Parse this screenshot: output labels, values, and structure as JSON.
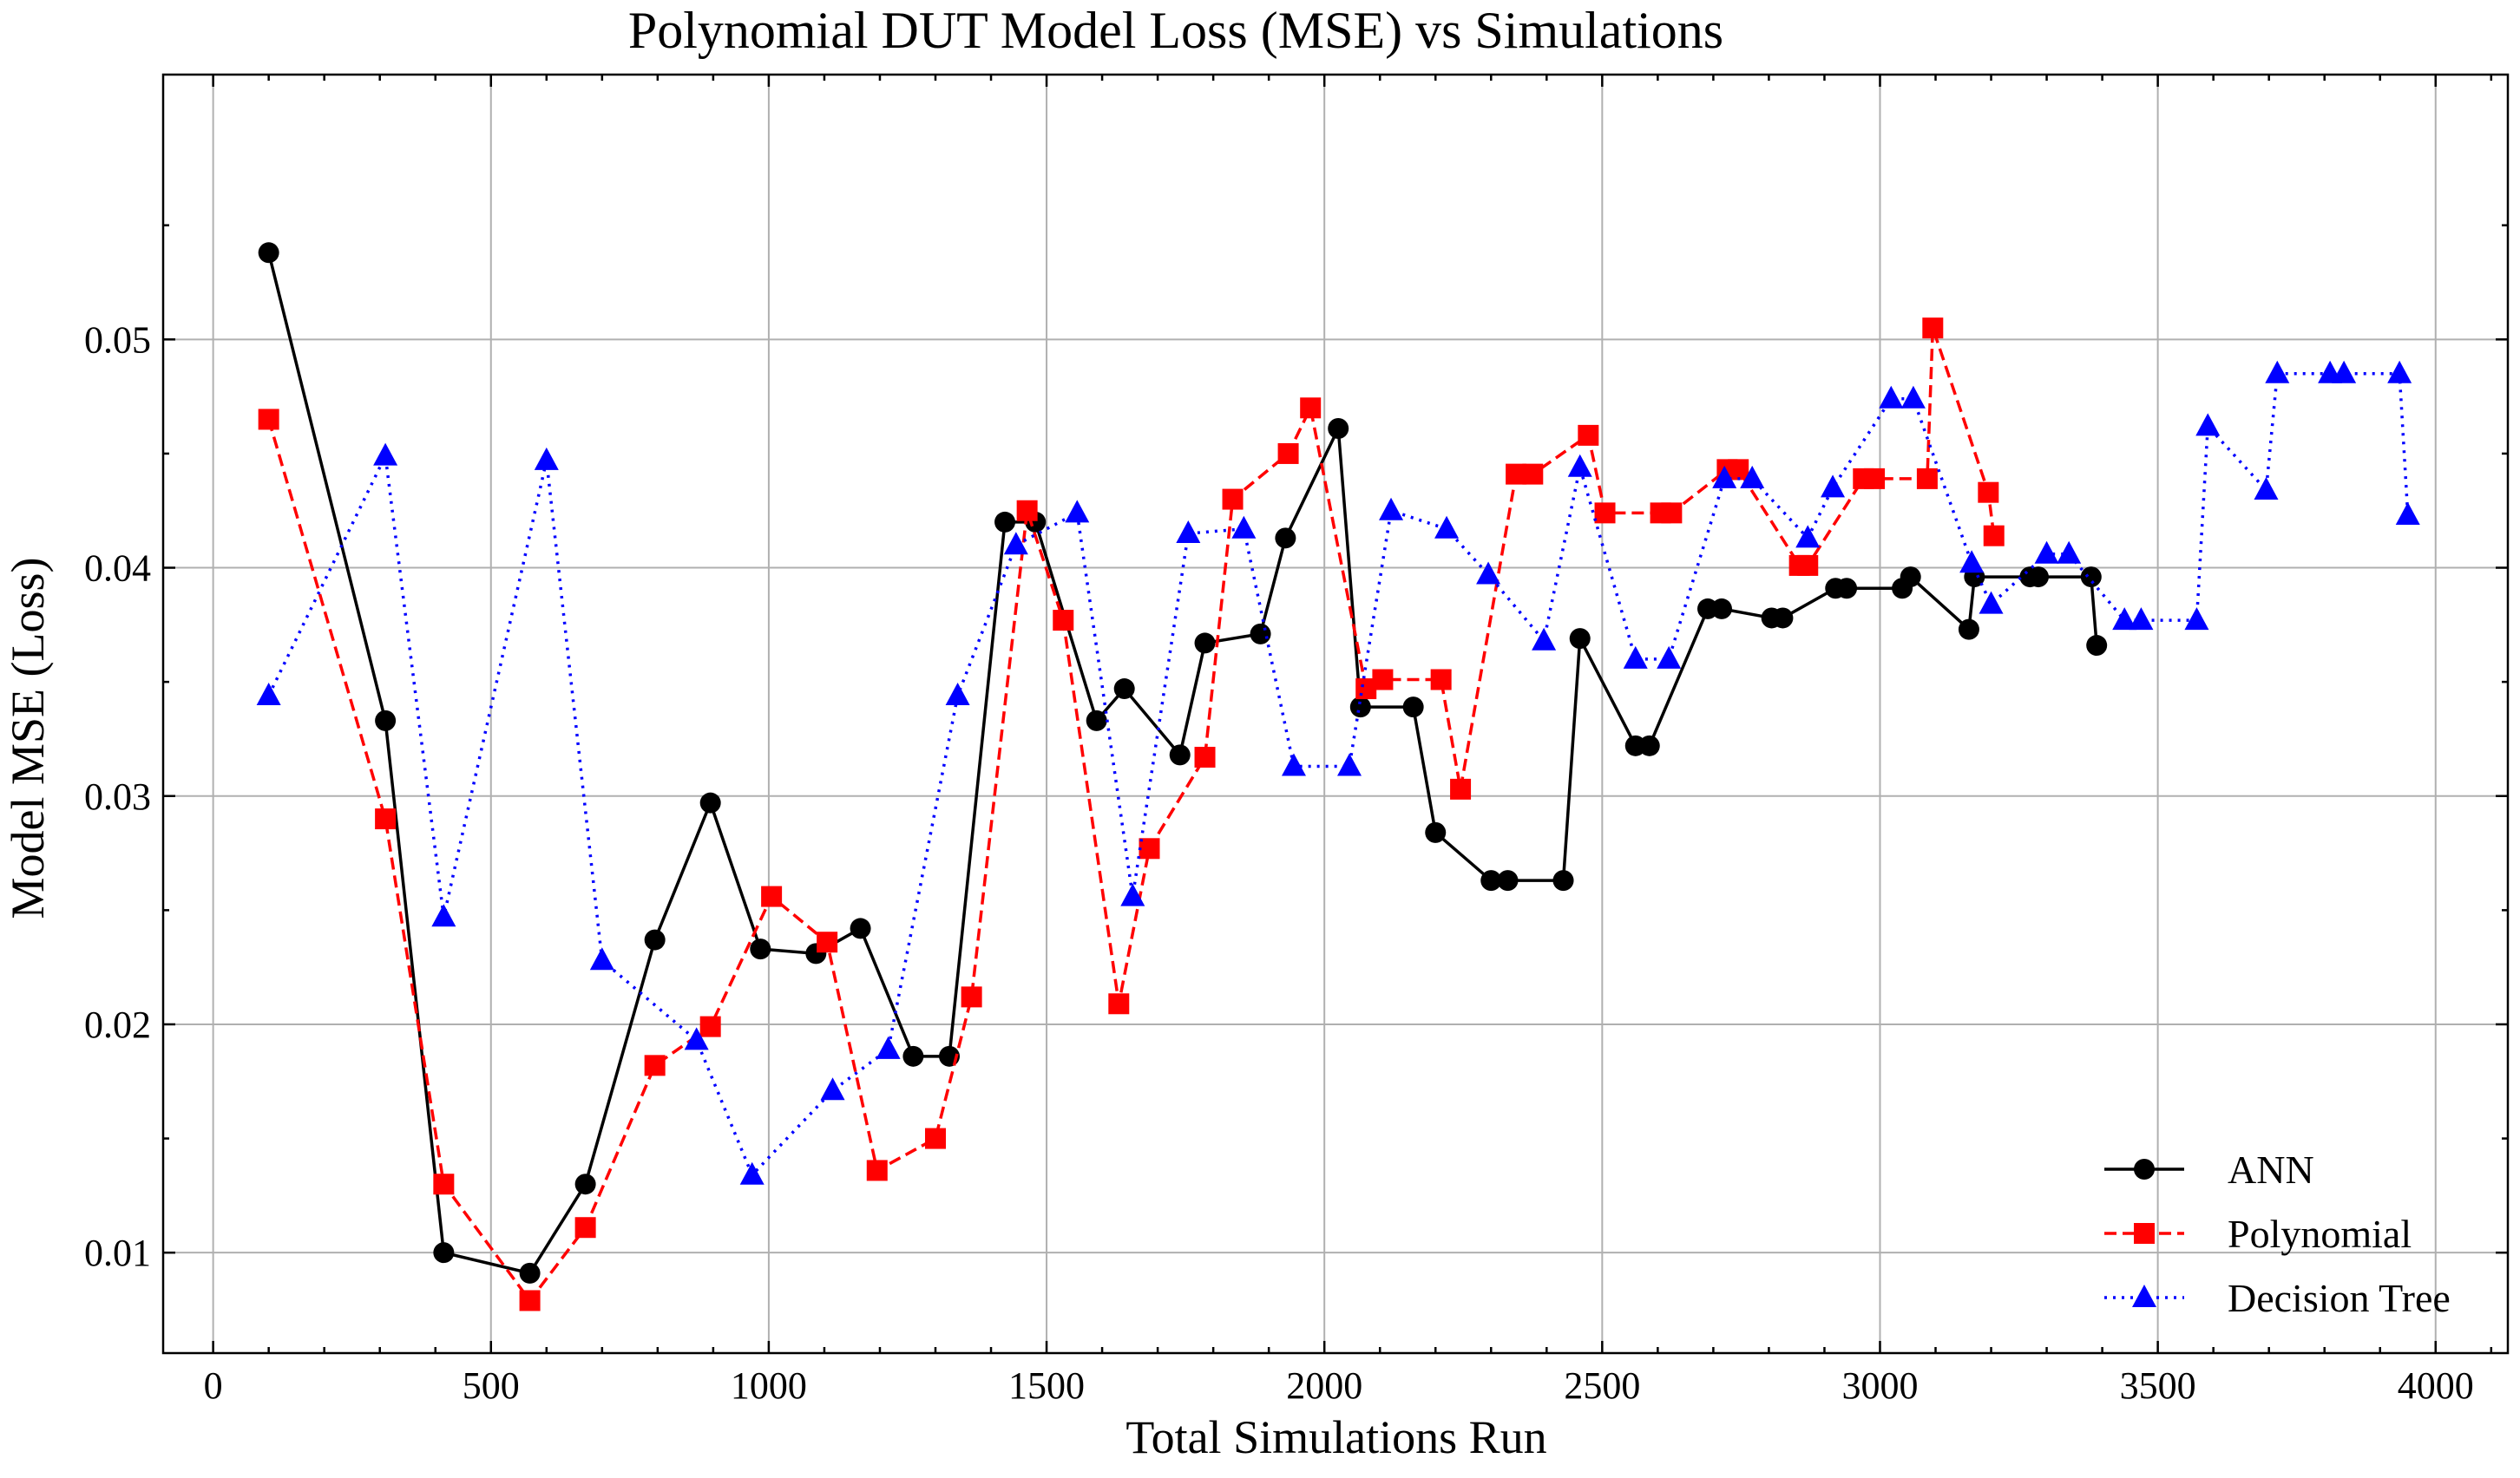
{
  "chart_data": {
    "type": "line",
    "title": "Polynomial DUT Model Loss (MSE) vs Simulations",
    "xlabel": "Total Simulations Run",
    "ylabel": "Model MSE (Loss)",
    "xlim": [
      -90,
      4130
    ],
    "ylim": [
      0.0056,
      0.0616
    ],
    "xticks": [
      0,
      500,
      1000,
      1500,
      2000,
      2500,
      3000,
      3500,
      4000
    ],
    "xtick_labels": [
      "0",
      "500",
      "1000",
      "1500",
      "2000",
      "2500",
      "3000",
      "3500",
      "4000"
    ],
    "yticks": [
      0.01,
      0.02,
      0.03,
      0.04,
      0.05
    ],
    "ytick_labels": [
      "0.01",
      "0.02",
      "0.03",
      "0.04",
      "0.05"
    ],
    "grid": true,
    "legend_position": "bottom-right",
    "series": [
      {
        "name": "ANN",
        "color": "#000000",
        "marker": "circle",
        "dash": "solid",
        "x": [
          100,
          310,
          415,
          570,
          670,
          795,
          895,
          985,
          1085,
          1165,
          1260,
          1325,
          1425,
          1480,
          1590,
          1640,
          1740,
          1785,
          1885,
          1930,
          2025,
          2065,
          2160,
          2200,
          2300,
          2330,
          2430,
          2460,
          2560,
          2585,
          2690,
          2715,
          2805,
          2825,
          2920,
          2940,
          3040,
          3055,
          3160,
          3170,
          3270,
          3285,
          3380,
          3390
        ],
        "y": [
          0.0538,
          0.0333,
          0.01,
          0.0091,
          0.013,
          0.0237,
          0.0297,
          0.0233,
          0.0231,
          0.0242,
          0.0186,
          0.0186,
          0.042,
          0.042,
          0.0333,
          0.0347,
          0.0318,
          0.0367,
          0.0371,
          0.0413,
          0.0461,
          0.0339,
          0.0339,
          0.0284,
          0.0263,
          0.0263,
          0.0263,
          0.0369,
          0.0322,
          0.0322,
          0.0382,
          0.0382,
          0.0378,
          0.0378,
          0.0391,
          0.0391,
          0.0391,
          0.0396,
          0.0373,
          0.0396,
          0.0396,
          0.0396,
          0.0396,
          0.0366
        ]
      },
      {
        "name": "Polynomial",
        "color": "#ff0000",
        "marker": "square",
        "dash": "dashed",
        "x": [
          100,
          310,
          415,
          570,
          670,
          795,
          895,
          1005,
          1105,
          1195,
          1300,
          1365,
          1465,
          1530,
          1630,
          1685,
          1785,
          1835,
          1935,
          1975,
          2075,
          2105,
          2210,
          2245,
          2345,
          2375,
          2475,
          2505,
          2605,
          2625,
          2725,
          2745,
          2855,
          2870,
          2970,
          2990,
          3085,
          3095,
          3195,
          3205
        ],
        "y": [
          0.0465,
          0.029,
          0.013,
          0.0079,
          0.0111,
          0.0182,
          0.0199,
          0.0256,
          0.0236,
          0.0136,
          0.015,
          0.0212,
          0.0425,
          0.0377,
          0.0209,
          0.0277,
          0.0317,
          0.043,
          0.045,
          0.047,
          0.0347,
          0.0351,
          0.0351,
          0.0303,
          0.0441,
          0.0441,
          0.0458,
          0.0424,
          0.0424,
          0.0424,
          0.0443,
          0.0443,
          0.0401,
          0.0401,
          0.0439,
          0.0439,
          0.0439,
          0.0505,
          0.0433,
          0.0414
        ]
      },
      {
        "name": "Decision Tree",
        "color": "#0000ff",
        "marker": "triangle",
        "dash": "dotted",
        "x": [
          100,
          310,
          415,
          600,
          700,
          870,
          970,
          1115,
          1215,
          1340,
          1445,
          1555,
          1655,
          1755,
          1855,
          1945,
          2045,
          2120,
          2220,
          2295,
          2395,
          2460,
          2560,
          2620,
          2720,
          2770,
          2870,
          2915,
          3020,
          3060,
          3165,
          3200,
          3300,
          3340,
          3440,
          3470,
          3570,
          3590,
          3695,
          3715,
          3810,
          3835,
          3935,
          3950
        ],
        "y": [
          0.0344,
          0.0449,
          0.0247,
          0.0447,
          0.0228,
          0.0193,
          0.0134,
          0.0171,
          0.0189,
          0.0344,
          0.041,
          0.0424,
          0.0256,
          0.0415,
          0.0417,
          0.0313,
          0.0313,
          0.0425,
          0.0417,
          0.0397,
          0.0368,
          0.0444,
          0.036,
          0.036,
          0.0439,
          0.0439,
          0.0413,
          0.0435,
          0.0474,
          0.0474,
          0.0402,
          0.0384,
          0.0406,
          0.0406,
          0.0377,
          0.0377,
          0.0377,
          0.0462,
          0.0434,
          0.0485,
          0.0485,
          0.0485,
          0.0485,
          0.0423
        ]
      }
    ]
  }
}
